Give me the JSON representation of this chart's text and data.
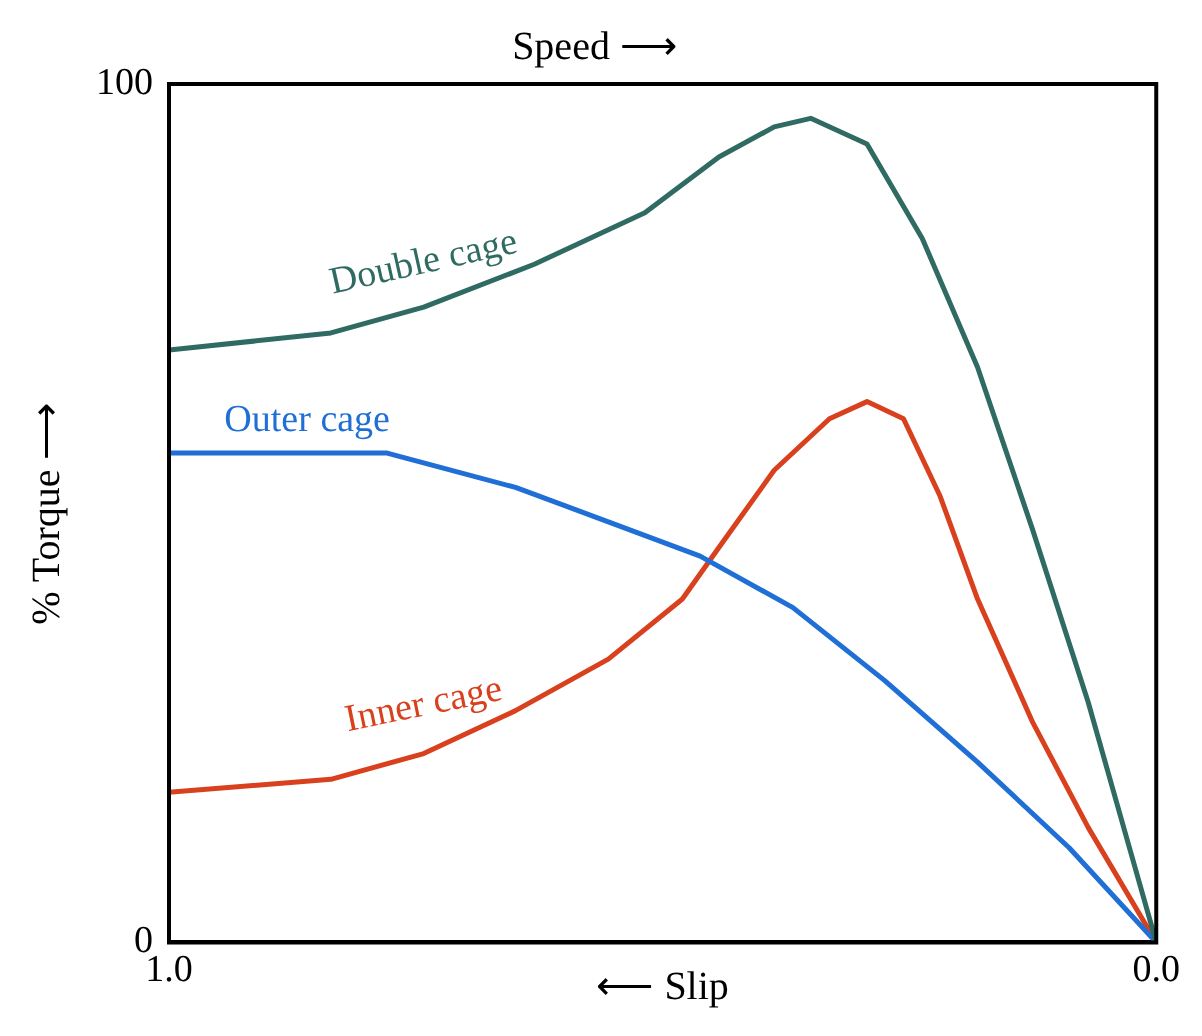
{
  "chart_data": {
    "type": "line",
    "title": "Speed ⟶",
    "xlabel": "⟵ Slip",
    "ylabel": "% Torque ⟶",
    "xlim": [
      1.0,
      0.0
    ],
    "xticks": [
      {
        "value": 1,
        "label": "1.0"
      },
      {
        "value": 0,
        "label": "0.0"
      }
    ],
    "ylim": [
      0,
      100
    ],
    "yticks": [
      0,
      100
    ],
    "legend": false,
    "marker": "none",
    "line_style": "solid",
    "series": [
      {
        "name": "Double cage",
        "color": "#2f6b62",
        "x": [
          1,
          0.836,
          0.742,
          0.63,
          0.518,
          0.443,
          0.387,
          0.35,
          0.293,
          0.237,
          0.181,
          0.125,
          0.069,
          0.032,
          0
        ],
        "values": [
          69,
          71,
          74,
          79,
          85,
          91.5,
          95,
          96,
          93,
          82,
          67,
          48,
          28,
          13,
          0
        ]
      },
      {
        "name": "Outer cage",
        "color": "#1f6fd6",
        "x": [
          1,
          0.779,
          0.649,
          0.555,
          0.462,
          0.368,
          0.275,
          0.181,
          0.088,
          0
        ],
        "values": [
          57,
          57,
          53,
          49,
          45,
          39,
          30.5,
          21,
          11,
          0
        ]
      },
      {
        "name": "Inner cage",
        "color": "#d9401e",
        "x": [
          1,
          0.836,
          0.742,
          0.649,
          0.555,
          0.48,
          0.443,
          0.387,
          0.331,
          0.293,
          0.256,
          0.219,
          0.181,
          0.125,
          0.069,
          0
        ],
        "values": [
          17.5,
          19,
          22,
          27,
          33,
          40,
          46,
          55,
          61,
          63,
          61,
          52,
          40,
          25.6,
          13.4,
          0
        ]
      }
    ]
  }
}
